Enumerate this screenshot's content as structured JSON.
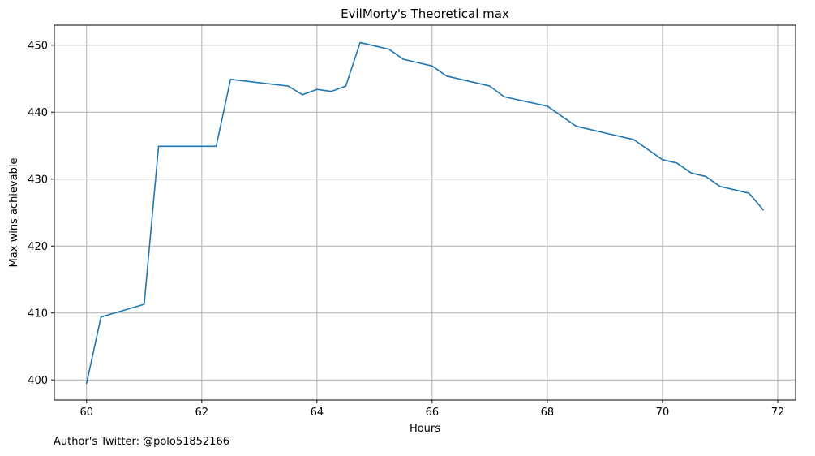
{
  "chart_data": {
    "type": "line",
    "title": "EvilMorty's Theoretical max",
    "xlabel": "Hours",
    "ylabel": "Max wins achievable",
    "xlim": [
      59.44,
      72.31
    ],
    "ylim": [
      397.0,
      453.0
    ],
    "xticks": [
      60,
      62,
      64,
      66,
      68,
      70,
      72
    ],
    "yticks": [
      400,
      410,
      420,
      430,
      440,
      450
    ],
    "grid": true,
    "series": [
      {
        "color": "#1f77b4",
        "x": [
          60.0,
          60.25,
          61.0,
          61.25,
          62.25,
          62.5,
          63.5,
          63.75,
          64.0,
          64.25,
          64.5,
          64.75,
          65.25,
          65.5,
          66.0,
          66.25,
          67.0,
          67.25,
          68.0,
          68.5,
          69.5,
          70.0,
          70.25,
          70.5,
          70.75,
          71.0,
          71.5,
          71.75
        ],
        "y": [
          399.5,
          409.4,
          411.3,
          434.9,
          434.9,
          444.9,
          443.9,
          442.6,
          443.4,
          443.1,
          443.9,
          450.4,
          449.4,
          447.9,
          446.9,
          445.4,
          443.9,
          442.3,
          440.9,
          437.9,
          435.9,
          432.9,
          432.4,
          430.9,
          430.4,
          428.9,
          427.9,
          425.4
        ]
      }
    ]
  },
  "footer": {
    "note": "Author's Twitter: @polo51852166"
  }
}
